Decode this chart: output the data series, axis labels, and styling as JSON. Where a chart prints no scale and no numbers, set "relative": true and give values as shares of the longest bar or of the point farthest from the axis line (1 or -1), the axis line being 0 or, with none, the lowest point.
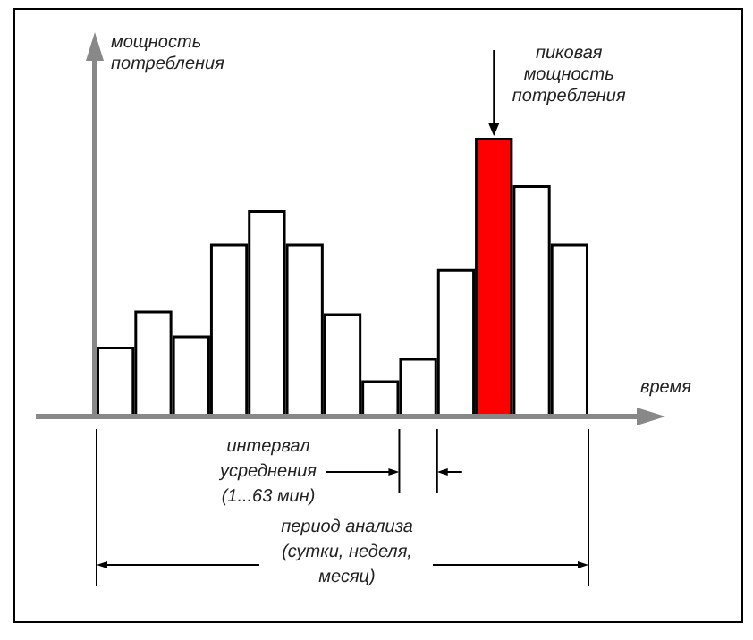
{
  "chart_data": {
    "type": "bar",
    "relative": true,
    "ylabel": "мощность потребления",
    "xlabel": "время",
    "categories": [
      null,
      null,
      null,
      null,
      null,
      null,
      null,
      null,
      null,
      null,
      null,
      null,
      null
    ],
    "values": [
      0.25,
      0.38,
      0.29,
      0.62,
      0.74,
      0.62,
      0.37,
      0.13,
      0.21,
      0.53,
      1,
      0.83,
      0.62
    ],
    "colors": [
      "#ffffff",
      "#ffffff",
      "#ffffff",
      "#ffffff",
      "#ffffff",
      "#ffffff",
      "#ffffff",
      "#ffffff",
      "#ffffff",
      "#ffffff",
      "#ff0000",
      "#ffffff",
      "#ffffff"
    ],
    "annotations": [
      "пиковая мощность потребления",
      "интервал усреднения (1...63 мин)",
      "период анализа (сутки, неделя, месяц)"
    ],
    "line_style": "solid"
  }
}
